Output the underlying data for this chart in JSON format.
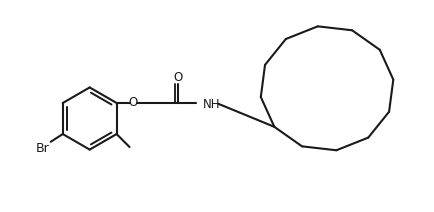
{
  "background_color": "#ffffff",
  "line_color": "#1a1a1a",
  "line_width": 1.5,
  "text_color": "#1a1a1a",
  "font_size": 8.5,
  "figsize": [
    4.34,
    2.12
  ],
  "dpi": 100,
  "xlim": [
    0,
    10
  ],
  "ylim": [
    0,
    4.88
  ]
}
